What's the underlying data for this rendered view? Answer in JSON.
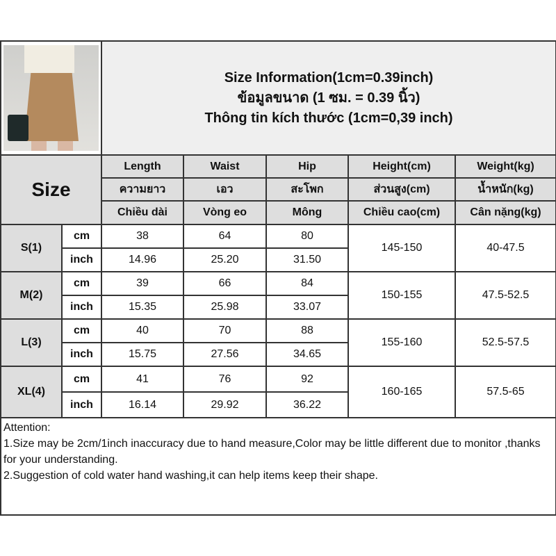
{
  "header": {
    "title_lines": [
      "Size Information(1cm=0.39inch)",
      "ข้อมูลขนาด (1 ซม. = 0.39 นิ้ว)",
      "Thông tin kích thước (1cm=0,39 inch)"
    ],
    "size_label": "Size"
  },
  "columns": [
    {
      "en": "Length",
      "th": "ความยาว",
      "vi": "Chiều dài"
    },
    {
      "en": "Waist",
      "th": "เอว",
      "vi": "Vòng eo"
    },
    {
      "en": "Hip",
      "th": "สะโพก",
      "vi": "Mông"
    },
    {
      "en": "Height(cm)",
      "th": "ส่วนสูง(cm)",
      "vi": "Chiều cao(cm)"
    },
    {
      "en": "Weight(kg)",
      "th": "น้ำหนัก(kg)",
      "vi": "Cân nặng(kg)"
    }
  ],
  "units": [
    "cm",
    "inch"
  ],
  "sizes": [
    {
      "name": "S(1)",
      "cm": [
        "38",
        "64",
        "80"
      ],
      "inch": [
        "14.96",
        "25.20",
        "31.50"
      ],
      "height": "145-150",
      "weight": "40-47.5"
    },
    {
      "name": "M(2)",
      "cm": [
        "39",
        "66",
        "84"
      ],
      "inch": [
        "15.35",
        "25.98",
        "33.07"
      ],
      "height": "150-155",
      "weight": "47.5-52.5"
    },
    {
      "name": "L(3)",
      "cm": [
        "40",
        "70",
        "88"
      ],
      "inch": [
        "15.75",
        "27.56",
        "34.65"
      ],
      "height": "155-160",
      "weight": "52.5-57.5"
    },
    {
      "name": "XL(4)",
      "cm": [
        "41",
        "76",
        "92"
      ],
      "inch": [
        "16.14",
        "29.92",
        "36.22"
      ],
      "height": "160-165",
      "weight": "57.5-65"
    }
  ],
  "attention": {
    "heading": "Attention:",
    "lines": [
      "1.Size may be 2cm/1inch inaccuracy due to hand measure,Color may be little different due to monitor ,thanks for your understanding.",
      "2.Suggestion of cold water hand washing,it can help items keep their shape."
    ]
  }
}
